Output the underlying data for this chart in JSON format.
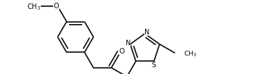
{
  "background_color": "#ffffff",
  "figsize": [
    3.88,
    1.08
  ],
  "dpi": 100,
  "bond_color": "#111111",
  "bond_lw": 1.3,
  "text_color": "#000000",
  "font_size": 7.2,
  "xlim": [
    0.0,
    7.8
  ],
  "ylim": [
    -0.3,
    2.7
  ]
}
